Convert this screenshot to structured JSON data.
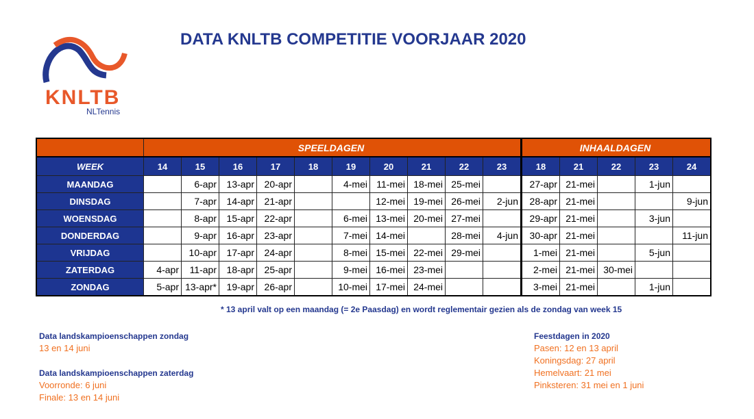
{
  "title": "DATA KNLTB COMPETITIE VOORJAAR 2020",
  "logo": {
    "text": "KNLTB",
    "subtext": "NLTennis",
    "colors": {
      "blue": "#24388f",
      "orange": "#e8582a"
    }
  },
  "table": {
    "section_speeldagen": "SPEELDAGEN",
    "section_inhaaldagen": "INHAALDAGEN",
    "week_label": "WEEK",
    "speel_weeks": [
      "14",
      "15",
      "16",
      "17",
      "18",
      "19",
      "20",
      "21",
      "22",
      "23"
    ],
    "inhaal_weeks": [
      "18",
      "21",
      "22",
      "23",
      "24"
    ],
    "rows": [
      {
        "day": "MAANDAG",
        "speel": [
          "",
          "6-apr",
          "13-apr",
          "20-apr",
          "",
          "4-mei",
          "11-mei",
          "18-mei",
          "25-mei",
          ""
        ],
        "inhaal": [
          "27-apr",
          "21-mei",
          "",
          "1-jun",
          ""
        ]
      },
      {
        "day": "DINSDAG",
        "speel": [
          "",
          "7-apr",
          "14-apr",
          "21-apr",
          "",
          "",
          "12-mei",
          "19-mei",
          "26-mei",
          "2-jun"
        ],
        "inhaal": [
          "28-apr",
          "21-mei",
          "",
          "",
          "9-jun"
        ]
      },
      {
        "day": "WOENSDAG",
        "speel": [
          "",
          "8-apr",
          "15-apr",
          "22-apr",
          "",
          "6-mei",
          "13-mei",
          "20-mei",
          "27-mei",
          ""
        ],
        "inhaal": [
          "29-apr",
          "21-mei",
          "",
          "3-jun",
          ""
        ]
      },
      {
        "day": "DONDERDAG",
        "speel": [
          "",
          "9-apr",
          "16-apr",
          "23-apr",
          "",
          "7-mei",
          "14-mei",
          "",
          "28-mei",
          "4-jun"
        ],
        "inhaal": [
          "30-apr",
          "21-mei",
          "",
          "",
          "11-jun"
        ]
      },
      {
        "day": "VRIJDAG",
        "speel": [
          "",
          "10-apr",
          "17-apr",
          "24-apr",
          "",
          "8-mei",
          "15-mei",
          "22-mei",
          "29-mei",
          ""
        ],
        "inhaal": [
          "1-mei",
          "21-mei",
          "",
          "5-jun",
          ""
        ]
      },
      {
        "day": "ZATERDAG",
        "speel": [
          "4-apr",
          "11-apr",
          "18-apr",
          "25-apr",
          "",
          "9-mei",
          "16-mei",
          "23-mei",
          "",
          ""
        ],
        "inhaal": [
          "2-mei",
          "21-mei",
          "30-mei",
          "",
          ""
        ]
      },
      {
        "day": "ZONDAG",
        "speel": [
          "5-apr",
          "13-apr*",
          "19-apr",
          "26-apr",
          "",
          "10-mei",
          "17-mei",
          "24-mei",
          "",
          ""
        ],
        "inhaal": [
          "3-mei",
          "21-mei",
          "",
          "1-jun",
          ""
        ]
      }
    ]
  },
  "footnote": "* 13 april valt op een maandag (= 2e Paasdag) en wordt reglementair gezien als de zondag van week 15",
  "lk_zondag": {
    "heading": "Data landskampioenschappen zondag",
    "lines": [
      "13 en 14 juni"
    ]
  },
  "lk_zaterdag": {
    "heading": "Data landskampioenschappen zaterdag",
    "lines": [
      "Voorronde: 6 juni",
      "Finale: 13 en 14 juni"
    ]
  },
  "feestdagen": {
    "heading": "Feestdagen in 2020",
    "lines": [
      "Pasen: 12 en 13 april",
      "Koningsdag: 27 april",
      "Hemelvaart: 21 mei",
      "Pinksteren: 31 mei en 1 juni"
    ]
  }
}
